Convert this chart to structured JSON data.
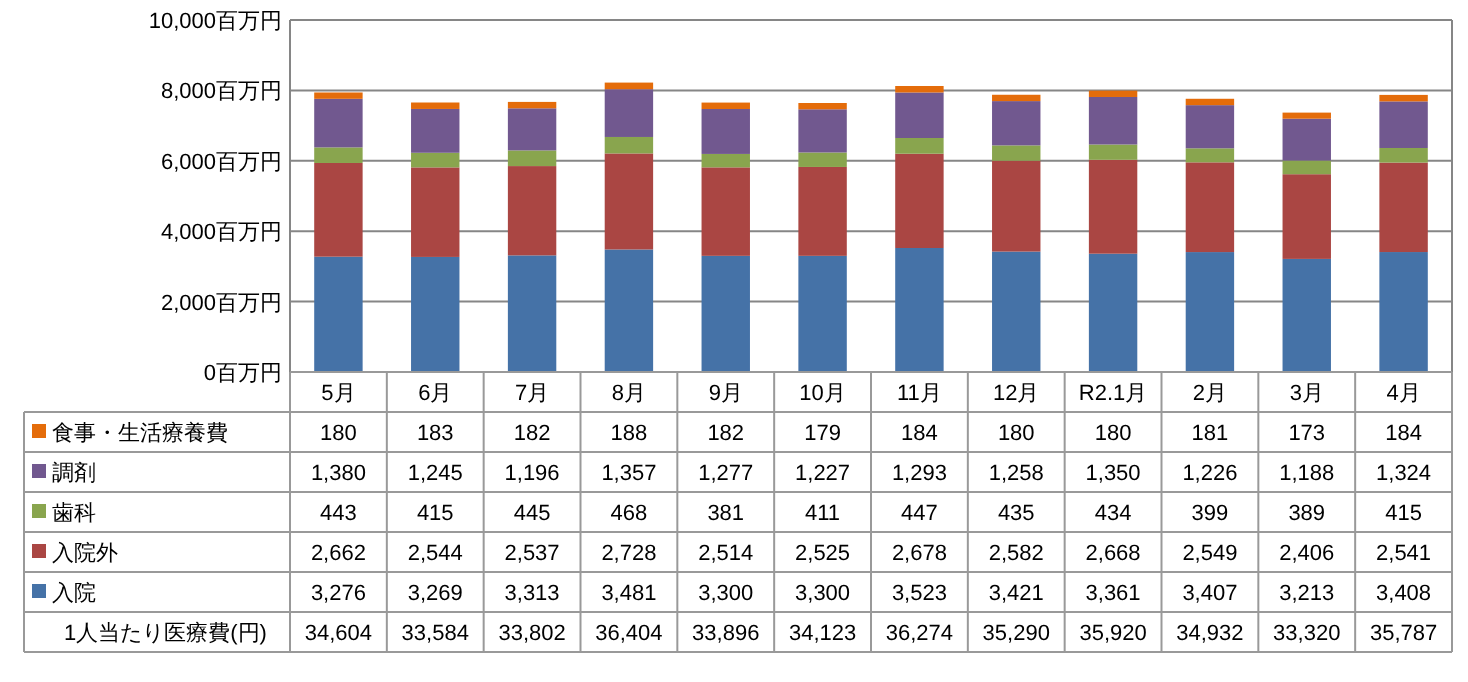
{
  "chart_data": [
    {
      "type": "bar",
      "stacked": true,
      "grid": "y",
      "legend": "left",
      "categories": [
        "5月",
        "6月",
        "7月",
        "8月",
        "9月",
        "10月",
        "11月",
        "12月",
        "R2.1月",
        "2月",
        "3月",
        "4月"
      ],
      "ylim": [
        0,
        10000
      ],
      "yticks": [
        {
          "value": 0,
          "label": "0百万円"
        },
        {
          "value": 2000,
          "label": "2,000百万円"
        },
        {
          "value": 4000,
          "label": "4,000百万円"
        },
        {
          "value": 6000,
          "label": "6,000百万円"
        },
        {
          "value": 8000,
          "label": "8,000百万円"
        },
        {
          "value": 10000,
          "label": "10,000百万円"
        }
      ],
      "series": [
        {
          "name": "入院",
          "color": "#4572a7",
          "values": [
            3276,
            3269,
            3313,
            3481,
            3300,
            3300,
            3523,
            3421,
            3361,
            3407,
            3213,
            3408
          ],
          "value_labels": [
            "3,276",
            "3,269",
            "3,313",
            "3,481",
            "3,300",
            "3,300",
            "3,523",
            "3,421",
            "3,361",
            "3,407",
            "3,213",
            "3,408"
          ]
        },
        {
          "name": "入院外",
          "color": "#aa4643",
          "values": [
            2662,
            2544,
            2537,
            2728,
            2514,
            2525,
            2678,
            2582,
            2668,
            2549,
            2406,
            2541
          ],
          "value_labels": [
            "2,662",
            "2,544",
            "2,537",
            "2,728",
            "2,514",
            "2,525",
            "2,678",
            "2,582",
            "2,668",
            "2,549",
            "2,406",
            "2,541"
          ]
        },
        {
          "name": "歯科",
          "color": "#89a54e",
          "values": [
            443,
            415,
            445,
            468,
            381,
            411,
            447,
            435,
            434,
            399,
            389,
            415
          ],
          "value_labels": [
            "443",
            "415",
            "445",
            "468",
            "381",
            "411",
            "447",
            "435",
            "434",
            "399",
            "389",
            "415"
          ]
        },
        {
          "name": "調剤",
          "color": "#71588f",
          "values": [
            1380,
            1245,
            1196,
            1357,
            1277,
            1227,
            1293,
            1258,
            1350,
            1226,
            1188,
            1324
          ],
          "value_labels": [
            "1,380",
            "1,245",
            "1,196",
            "1,357",
            "1,277",
            "1,227",
            "1,293",
            "1,258",
            "1,350",
            "1,226",
            "1,188",
            "1,324"
          ]
        },
        {
          "name": "食事・生活療養費",
          "color": "#e46c0a",
          "values": [
            180,
            183,
            182,
            188,
            182,
            179,
            184,
            180,
            180,
            181,
            173,
            184
          ],
          "value_labels": [
            "180",
            "183",
            "182",
            "188",
            "182",
            "179",
            "184",
            "180",
            "180",
            "181",
            "173",
            "184"
          ]
        }
      ]
    },
    {
      "type": "other",
      "title": "1人当たり医療費(円)",
      "annotations": [
        "34,604",
        "33,584",
        "33,802",
        "36,404",
        "33,896",
        "34,123",
        "36,274",
        "35,290",
        "35,920",
        "34,932",
        "33,320",
        "35,787"
      ]
    }
  ]
}
